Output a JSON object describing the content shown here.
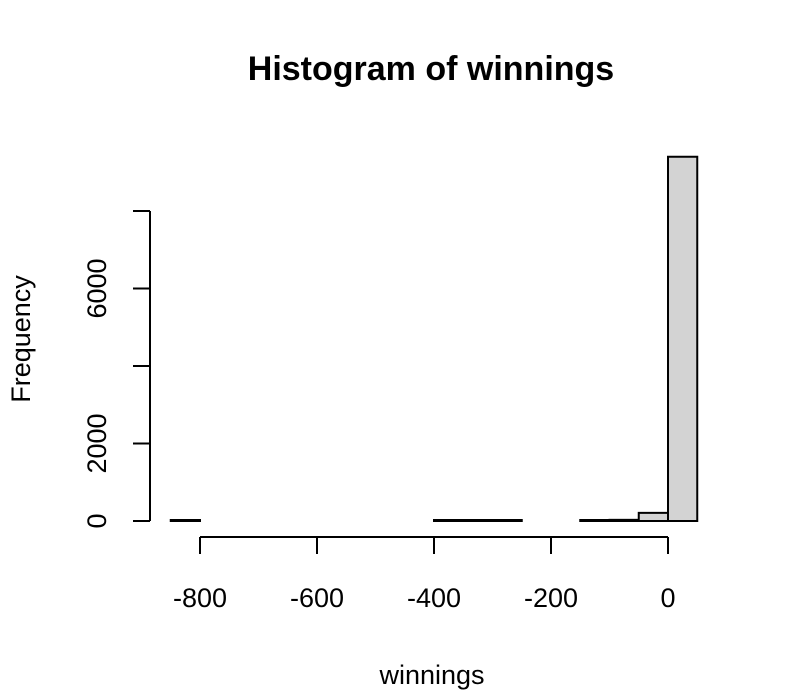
{
  "chart_data": {
    "type": "bar",
    "title": "Histogram of winnings",
    "xlabel": "winnings",
    "ylabel": "Frequency",
    "bin_edges": [
      -850,
      -800,
      -750,
      -700,
      -650,
      -600,
      -550,
      -500,
      -450,
      -400,
      -350,
      -300,
      -250,
      -200,
      -150,
      -100,
      -50,
      0,
      50
    ],
    "values": [
      1,
      0,
      0,
      0,
      0,
      0,
      0,
      0,
      0,
      20,
      20,
      20,
      0,
      0,
      20,
      30,
      210,
      9400
    ],
    "xlim": [
      -850,
      50
    ],
    "ylim": [
      0,
      9400
    ],
    "x_ticks": [
      -800,
      -600,
      -400,
      -200,
      0
    ],
    "x_tick_labels": [
      "-800",
      "-600",
      "-400",
      "-200",
      "0"
    ],
    "y_ticks": [
      0,
      2000,
      4000,
      6000,
      8000
    ],
    "y_tick_labels": [
      "0",
      "2000",
      "",
      "6000",
      ""
    ],
    "bar_fill": "#d3d3d3",
    "bar_stroke": "#000000"
  }
}
